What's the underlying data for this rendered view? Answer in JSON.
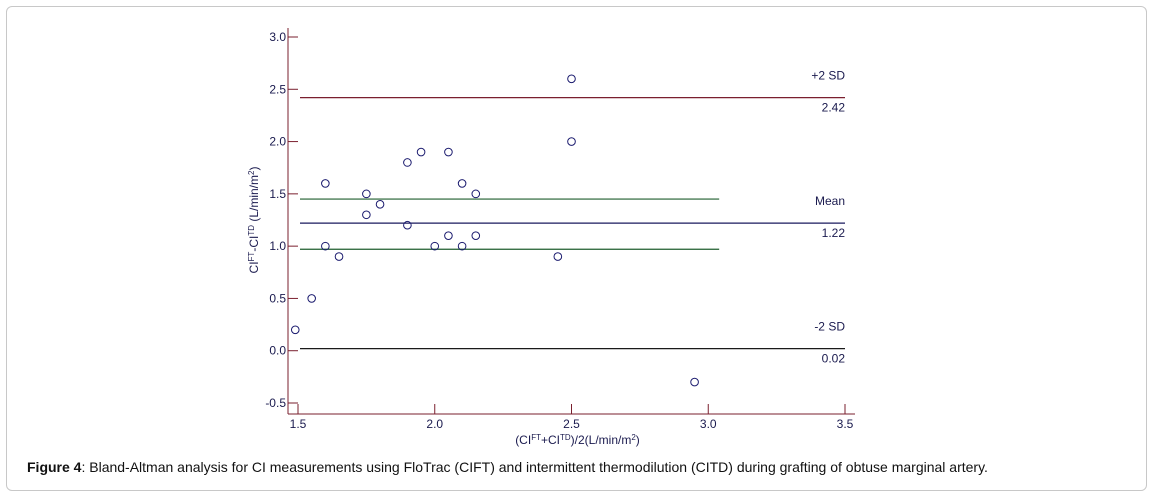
{
  "chart_data": {
    "type": "scatter",
    "title": "",
    "xlabel": {
      "parts": [
        "(CI",
        "FT",
        "+CI",
        "TD",
        ")/2(L/min/m",
        "2",
        ")"
      ]
    },
    "ylabel": {
      "parts": [
        "CI",
        "FT",
        "-CI",
        "TD",
        " (L/min/m",
        "2",
        ")"
      ]
    },
    "xlim": [
      1.5,
      3.5
    ],
    "ylim": [
      -0.5,
      3.0
    ],
    "x_ticks": [
      "1.5",
      "2.0",
      "2.5",
      "3.0",
      "3.5"
    ],
    "x_tick_values": [
      1.5,
      2.0,
      2.5,
      3.0,
      3.5
    ],
    "y_ticks": [
      "3.0",
      "2.5",
      "2.0",
      "1.5",
      "1.0",
      "0.5",
      "0.0",
      "-0.5"
    ],
    "y_tick_values": [
      3.0,
      2.5,
      2.0,
      1.5,
      1.0,
      0.5,
      0.0,
      -0.5
    ],
    "grid": false,
    "points": [
      {
        "x": 1.49,
        "y": 0.2
      },
      {
        "x": 1.55,
        "y": 0.5
      },
      {
        "x": 1.6,
        "y": 1.6
      },
      {
        "x": 1.6,
        "y": 1.0
      },
      {
        "x": 1.65,
        "y": 0.9
      },
      {
        "x": 1.75,
        "y": 1.5
      },
      {
        "x": 1.75,
        "y": 1.3
      },
      {
        "x": 1.8,
        "y": 1.4
      },
      {
        "x": 1.9,
        "y": 1.8
      },
      {
        "x": 1.9,
        "y": 1.2
      },
      {
        "x": 1.95,
        "y": 1.9
      },
      {
        "x": 2.0,
        "y": 1.0
      },
      {
        "x": 2.05,
        "y": 1.9
      },
      {
        "x": 2.05,
        "y": 1.1
      },
      {
        "x": 2.1,
        "y": 1.6
      },
      {
        "x": 2.1,
        "y": 1.0
      },
      {
        "x": 2.15,
        "y": 1.5
      },
      {
        "x": 2.15,
        "y": 1.1
      },
      {
        "x": 2.45,
        "y": 0.9
      },
      {
        "x": 2.5,
        "y": 2.6
      },
      {
        "x": 2.5,
        "y": 2.0
      },
      {
        "x": 2.95,
        "y": -0.3
      }
    ],
    "reference_lines": [
      {
        "name": "upper-sd",
        "label": "+2 SD",
        "value_label": "2.42",
        "y": 2.42,
        "x_end": 3.5,
        "color": "#7a1f2e"
      },
      {
        "name": "mean",
        "label": "Mean",
        "value_label": "1.22",
        "y": 1.22,
        "x_end": 3.5,
        "color": "#1a1a5e"
      },
      {
        "name": "lower-sd",
        "label": "-2 SD",
        "value_label": "0.02",
        "y": 0.02,
        "x_end": 3.5,
        "color": "#1a1a1a"
      },
      {
        "name": "ci-upper",
        "label": "",
        "value_label": "",
        "y": 1.45,
        "x_end": 3.04,
        "color": "#1f5e2e"
      },
      {
        "name": "ci-lower",
        "label": "",
        "value_label": "",
        "y": 0.97,
        "x_end": 3.04,
        "color": "#1f5e2e"
      }
    ],
    "colors": {
      "axis": "#7a1f2e",
      "marker": "#1a1a6e",
      "text": "#1a1a4e"
    }
  },
  "caption": {
    "label": "Figure 4",
    "text": ": Bland-Altman analysis for CI measurements using FloTrac (CIFT) and intermittent thermodilution (CITD) during grafting of obtuse marginal artery."
  }
}
